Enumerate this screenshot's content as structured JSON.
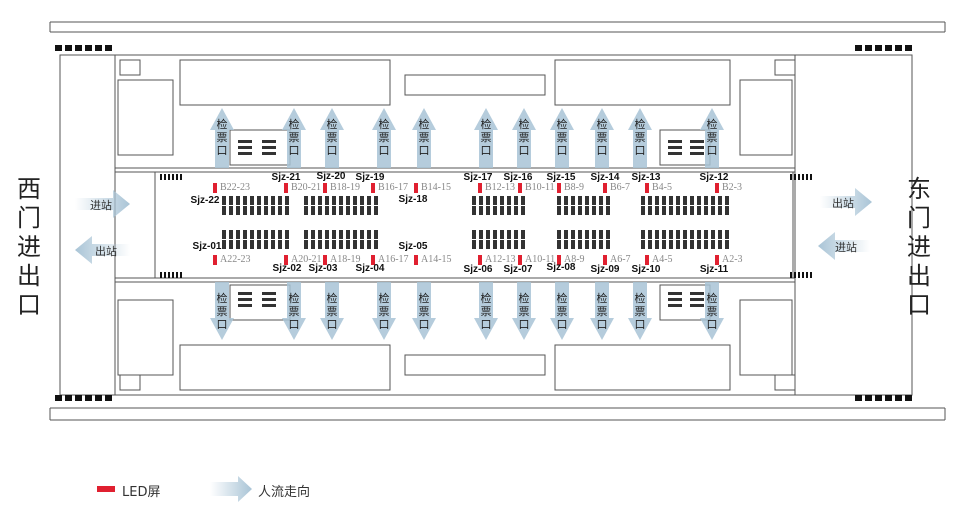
{
  "west_gate": {
    "label": "西门进出口",
    "enter": "进站",
    "exit": "出站"
  },
  "east_gate": {
    "label": "东门进出口",
    "enter": "进站",
    "exit": "出站"
  },
  "ticket_gate_label": "检票口",
  "gates_top": [
    "B22-23",
    "B20-21",
    "B18-19",
    "B16-17",
    "B14-15",
    "B12-13",
    "B10-11",
    "B8-9",
    "B6-7",
    "B4-5",
    "B2-3"
  ],
  "gates_bottom": [
    "A22-23",
    "A20-21",
    "A18-19",
    "A16-17",
    "A14-15",
    "A12-13",
    "A10-11",
    "A8-9",
    "A6-7",
    "A4-5",
    "A2-3"
  ],
  "screens_top": [
    "Sjz-22",
    "Sjz-21",
    "Sjz-20",
    "Sjz-19",
    "Sjz-18",
    "Sjz-17",
    "Sjz-16",
    "Sjz-15",
    "Sjz-14",
    "Sjz-13",
    "Sjz-12"
  ],
  "screens_bottom": [
    "Sjz-01",
    "Sjz-02",
    "Sjz-03",
    "Sjz-04",
    "Sjz-05",
    "Sjz-06",
    "Sjz-07",
    "Sjz-08",
    "Sjz-09",
    "Sjz-10",
    "Sjz-11"
  ],
  "legend": {
    "led": "LED屏",
    "flow": "人流走向"
  },
  "colors": {
    "led": "#e02030",
    "arrow": "#a9c4d6",
    "seat": "#333333",
    "line": "#555555"
  }
}
